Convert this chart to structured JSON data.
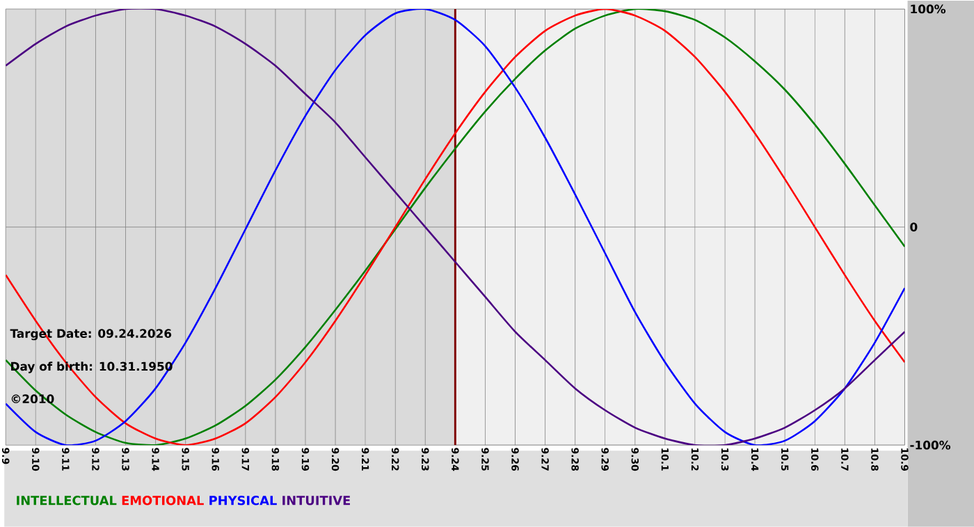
{
  "chart_data": {
    "type": "line",
    "categories": [
      "9.9",
      "9.10",
      "9.11",
      "9.12",
      "9.13",
      "9.14",
      "9.15",
      "9.16",
      "9.17",
      "9.18",
      "9.19",
      "9.20",
      "9.21",
      "9.22",
      "9.23",
      "9.24",
      "9.25",
      "9.26",
      "9.27",
      "9.28",
      "9.29",
      "9.30",
      "10.1",
      "10.2",
      "10.3",
      "10.4",
      "10.5",
      "10.6",
      "10.7",
      "10.8",
      "10.9"
    ],
    "series": [
      {
        "name": "INTELLECTUAL",
        "color": "#008000",
        "values": [
          -61,
          -75,
          -86,
          -94,
          -99,
          -100,
          -97,
          -91,
          -82,
          -70,
          -55,
          -38,
          -20,
          -1,
          18,
          36,
          53,
          68,
          81,
          91,
          97,
          100,
          99,
          95,
          87,
          76,
          63,
          47,
          29,
          10,
          -9
        ]
      },
      {
        "name": "EMOTIONAL",
        "color": "#ff0000",
        "values": [
          -22,
          -43,
          -62,
          -78,
          -90,
          -97,
          -100,
          -97,
          -90,
          -78,
          -62,
          -43,
          -22,
          0,
          22,
          43,
          62,
          78,
          90,
          97,
          100,
          97,
          90,
          78,
          62,
          43,
          22,
          0,
          -22,
          -43,
          -62
        ]
      },
      {
        "name": "PHYSICAL",
        "color": "#0000ff",
        "values": [
          -81,
          -94,
          -100,
          -98,
          -89,
          -74,
          -53,
          -28,
          -1,
          26,
          51,
          72,
          88,
          98,
          100,
          95,
          83,
          64,
          41,
          15,
          -12,
          -39,
          -62,
          -81,
          -94,
          -100,
          -98,
          -89,
          -74,
          -53,
          -28
        ]
      },
      {
        "name": "INTUITIVE",
        "color": "#4b0082",
        "values": [
          74,
          84,
          92,
          97,
          100,
          100,
          97,
          92,
          84,
          74,
          61,
          48,
          32,
          16,
          0,
          -16,
          -32,
          -48,
          -61,
          -74,
          -84,
          -92,
          -97,
          -100,
          -100,
          -97,
          -92,
          -84,
          -74,
          -61,
          -48
        ]
      }
    ],
    "ylim": [
      -100,
      100
    ],
    "yticks": [
      {
        "value": 100,
        "label": "100%"
      },
      0,
      {
        "value": -100,
        "label": "-100%"
      }
    ],
    "grid": true,
    "legend": "bottom left",
    "marker": "none",
    "line_style": "solid",
    "ref_lines": [
      {
        "axis": "x",
        "value": "9.24",
        "color": "#800000"
      }
    ],
    "bands": [
      {
        "axis": "x",
        "from": "9.9",
        "to": "9.24",
        "color": "#dadada"
      }
    ],
    "annotations": [
      "Target Date: 09.24.2026",
      "Day of birth: 10.31.1950",
      "©2010"
    ]
  }
}
